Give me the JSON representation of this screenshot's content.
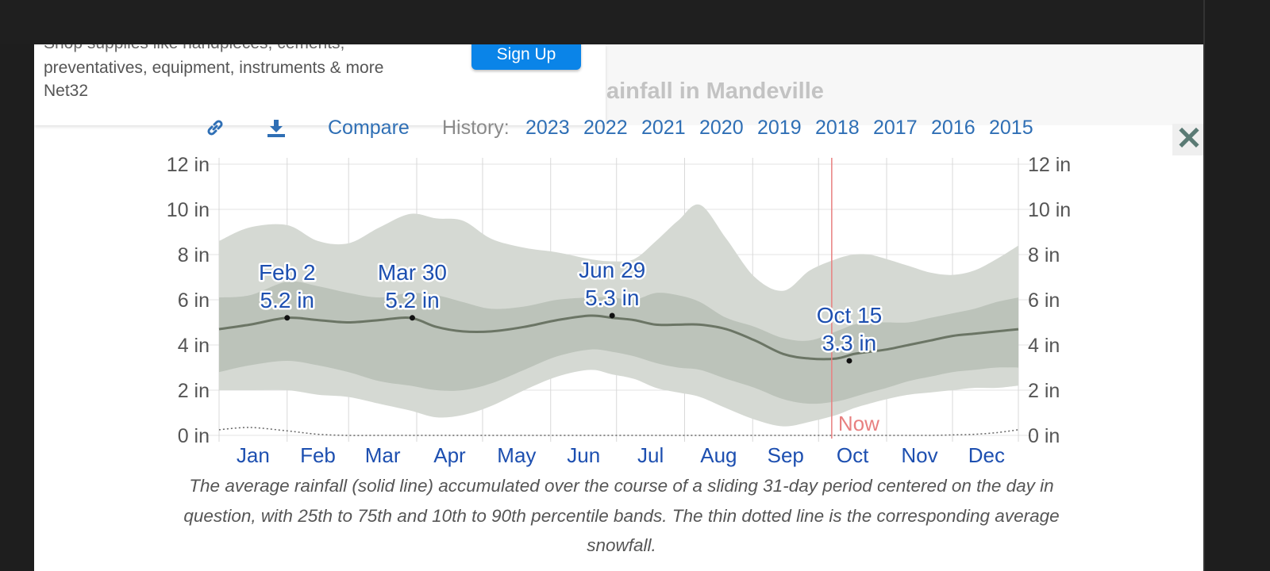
{
  "ad": {
    "line1_partial": "Shop supplies like handpieces, cements,",
    "line2": "preventatives, equipment, instruments & more",
    "brand": "Net32",
    "button": "Sign Up"
  },
  "page_title": "Rainfall in Mandeville",
  "close_label": "✕",
  "toolbar": {
    "link_icon": "link-icon",
    "download_icon": "download-icon",
    "compare": "Compare",
    "history_label": "History:",
    "years": [
      "2023",
      "2022",
      "2021",
      "2020",
      "2019",
      "2018",
      "2017",
      "2016",
      "2015"
    ]
  },
  "colors": {
    "p10_90": "#d5d9d3",
    "p25_75": "#bcc3ba",
    "mean": "#6b7565",
    "now": "#e88080",
    "month": "#1d4fb0",
    "annotation": "#1d4fb0"
  },
  "chart_data": {
    "type": "area",
    "title": "",
    "xlabel": "",
    "ylabel": "",
    "ylim": [
      0,
      12
    ],
    "yticks": [
      "0 in",
      "2 in",
      "4 in",
      "6 in",
      "8 in",
      "10 in",
      "12 in"
    ],
    "months": [
      "Jan",
      "Feb",
      "Mar",
      "Apr",
      "May",
      "Jun",
      "Jul",
      "Aug",
      "Sep",
      "Oct",
      "Nov",
      "Dec"
    ],
    "day_of_year": [
      1,
      15,
      32,
      46,
      60,
      74,
      88,
      100,
      112,
      125,
      140,
      155,
      170,
      180,
      190,
      200,
      210,
      220,
      232,
      245,
      258,
      270,
      282,
      290,
      297,
      305,
      315,
      325,
      335,
      345,
      355,
      365
    ],
    "series": [
      {
        "key": "p90",
        "values": [
          8.6,
          9.2,
          9.3,
          8.6,
          8.5,
          9.2,
          9.8,
          9.6,
          9.5,
          8.7,
          8.3,
          8.1,
          7.8,
          7.7,
          7.8,
          8.6,
          9.5,
          10.2,
          8.7,
          7.0,
          6.4,
          7.3,
          7.8,
          8.0,
          8.0,
          7.8,
          7.5,
          7.2,
          7.1,
          7.3,
          7.8,
          8.4
        ]
      },
      {
        "key": "p75",
        "values": [
          6.1,
          6.2,
          6.8,
          6.6,
          6.3,
          6.1,
          6.3,
          6.2,
          5.9,
          5.6,
          5.7,
          6.0,
          6.1,
          6.1,
          6.0,
          6.3,
          6.2,
          5.9,
          5.2,
          4.8,
          4.3,
          4.2,
          4.6,
          4.9,
          5.0,
          5.0,
          5.0,
          5.2,
          5.4,
          5.6,
          5.9,
          6.1
        ]
      },
      {
        "key": "mean",
        "values": [
          4.7,
          4.9,
          5.2,
          5.1,
          5.0,
          5.1,
          5.2,
          4.8,
          4.6,
          4.6,
          4.8,
          5.1,
          5.3,
          5.2,
          5.1,
          4.9,
          4.9,
          4.9,
          4.7,
          4.2,
          3.6,
          3.4,
          3.4,
          3.6,
          3.7,
          3.8,
          4.0,
          4.2,
          4.4,
          4.5,
          4.6,
          4.7
        ]
      },
      {
        "key": "p25",
        "values": [
          2.8,
          3.1,
          3.3,
          3.1,
          2.8,
          2.4,
          2.2,
          2.0,
          2.0,
          2.3,
          2.9,
          3.5,
          3.8,
          3.7,
          3.5,
          3.2,
          3.0,
          2.9,
          2.5,
          2.1,
          1.6,
          1.4,
          1.5,
          1.7,
          1.9,
          2.1,
          2.4,
          2.6,
          2.8,
          2.9,
          3.0,
          3.0
        ]
      },
      {
        "key": "p10",
        "values": [
          2.0,
          2.0,
          2.0,
          1.8,
          1.7,
          1.4,
          1.1,
          0.8,
          0.9,
          1.3,
          2.0,
          2.6,
          2.9,
          2.7,
          2.5,
          2.1,
          1.9,
          1.7,
          1.2,
          0.7,
          0.4,
          0.6,
          0.9,
          1.2,
          1.4,
          1.6,
          1.8,
          1.9,
          2.0,
          2.1,
          2.1,
          2.2
        ]
      },
      {
        "key": "snow",
        "values": [
          0.25,
          0.35,
          0.2,
          0.05,
          0,
          0,
          0,
          0,
          0,
          0,
          0,
          0,
          0,
          0,
          0,
          0,
          0,
          0,
          0,
          0,
          0,
          0,
          0,
          0,
          0,
          0,
          0,
          0,
          0.02,
          0.05,
          0.12,
          0.25
        ]
      }
    ],
    "annotations": [
      {
        "day": 32,
        "value": 5.2,
        "date": "Feb 2",
        "label": "5.2 in"
      },
      {
        "day": 89,
        "value": 5.2,
        "date": "Mar 30",
        "label": "5.2 in"
      },
      {
        "day": 180,
        "value": 5.3,
        "date": "Jun 29",
        "label": "5.3 in"
      },
      {
        "day": 288,
        "value": 3.3,
        "date": "Oct 15",
        "label": "3.3 in"
      }
    ],
    "now": {
      "day": 280,
      "label": "Now"
    }
  },
  "caption": "The average rainfall (solid line) accumulated over the course of a sliding 31-day period centered on the day in question, with 25th to 75th and 10th to 90th percentile bands. The thin dotted line is the corresponding average snowfall."
}
